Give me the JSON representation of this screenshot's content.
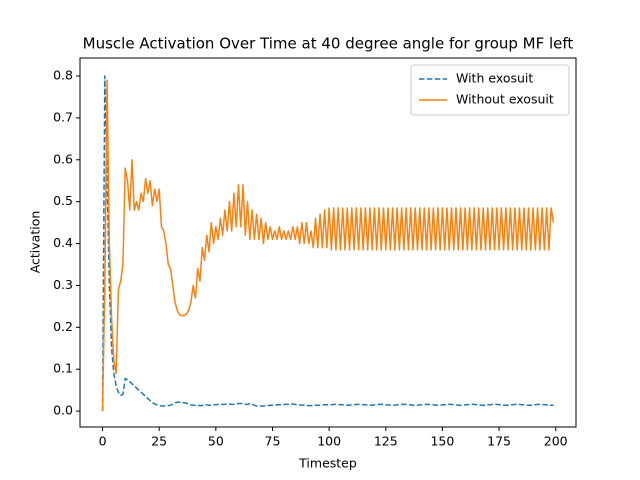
{
  "chart_data": {
    "type": "line",
    "title": "Muscle Activation Over Time at 40 degree angle for group MF left",
    "xlabel": "Timestep",
    "ylabel": "Activation",
    "xlim": [
      -9.95,
      208.95
    ],
    "ylim": [
      -0.038,
      0.843
    ],
    "xticks": [
      0,
      25,
      50,
      75,
      100,
      125,
      150,
      175,
      200
    ],
    "yticks": [
      {
        "value": 0,
        "label": "0.0"
      },
      0.1,
      0.2,
      0.3,
      0.4,
      0.5,
      0.6,
      0.7,
      0.8
    ],
    "legend": "upper right",
    "x": [
      0,
      1,
      2,
      3,
      4,
      5,
      6,
      7,
      8,
      9,
      10,
      11,
      12,
      13,
      14,
      15,
      16,
      17,
      18,
      19,
      20,
      21,
      22,
      23,
      24,
      25,
      26,
      27,
      28,
      29,
      30,
      31,
      32,
      33,
      34,
      35,
      36,
      37,
      38,
      39,
      40,
      41,
      42,
      43,
      44,
      45,
      46,
      47,
      48,
      49,
      50,
      51,
      52,
      53,
      54,
      55,
      56,
      57,
      58,
      59,
      60,
      61,
      62,
      63,
      64,
      65,
      66,
      67,
      68,
      69,
      70,
      71,
      72,
      73,
      74,
      75,
      76,
      77,
      78,
      79,
      80,
      81,
      82,
      83,
      84,
      85,
      86,
      87,
      88,
      89,
      90,
      91,
      92,
      93,
      94,
      95,
      96,
      97,
      98,
      99,
      100,
      101,
      102,
      103,
      104,
      105,
      106,
      107,
      108,
      109,
      110,
      111,
      112,
      113,
      114,
      115,
      116,
      117,
      118,
      119,
      120,
      121,
      122,
      123,
      124,
      125,
      126,
      127,
      128,
      129,
      130,
      131,
      132,
      133,
      134,
      135,
      136,
      137,
      138,
      139,
      140,
      141,
      142,
      143,
      144,
      145,
      146,
      147,
      148,
      149,
      150,
      151,
      152,
      153,
      154,
      155,
      156,
      157,
      158,
      159,
      160,
      161,
      162,
      163,
      164,
      165,
      166,
      167,
      168,
      169,
      170,
      171,
      172,
      173,
      174,
      175,
      176,
      177,
      178,
      179,
      180,
      181,
      182,
      183,
      184,
      185,
      186,
      187,
      188,
      189,
      190,
      191,
      192,
      193,
      194,
      195,
      196,
      197,
      198,
      199
    ],
    "series": [
      {
        "name": "With exosuit",
        "color": "#1f77b4",
        "linestyle": "dashed",
        "values": [
          0.0,
          0.8,
          0.55,
          0.3,
          0.15,
          0.09,
          0.06,
          0.045,
          0.038,
          0.04,
          0.078,
          0.075,
          0.07,
          0.065,
          0.06,
          0.055,
          0.05,
          0.045,
          0.04,
          0.035,
          0.03,
          0.025,
          0.02,
          0.017,
          0.015,
          0.013,
          0.012,
          0.012,
          0.012,
          0.013,
          0.014,
          0.016,
          0.02,
          0.021,
          0.021,
          0.02,
          0.02,
          0.019,
          0.017,
          0.015,
          0.014,
          0.014,
          0.014,
          0.013,
          0.013,
          0.016,
          0.015,
          0.014,
          0.014,
          0.015,
          0.015,
          0.016,
          0.015,
          0.016,
          0.016,
          0.017,
          0.017,
          0.016,
          0.016,
          0.017,
          0.018,
          0.018,
          0.017,
          0.016,
          0.016,
          0.018,
          0.016,
          0.014,
          0.012,
          0.012,
          0.012,
          0.012,
          0.013,
          0.013,
          0.014,
          0.014,
          0.014,
          0.015,
          0.015,
          0.015,
          0.016,
          0.016,
          0.016,
          0.017,
          0.017,
          0.016,
          0.015,
          0.015,
          0.014,
          0.014,
          0.013,
          0.013,
          0.013,
          0.013,
          0.014,
          0.014,
          0.014,
          0.015,
          0.015,
          0.015,
          0.015,
          0.015,
          0.016,
          0.016,
          0.016,
          0.015,
          0.015,
          0.014,
          0.014,
          0.014,
          0.015,
          0.015,
          0.016,
          0.016,
          0.016,
          0.015,
          0.015,
          0.014,
          0.014,
          0.014,
          0.015,
          0.015,
          0.016,
          0.016,
          0.016,
          0.015,
          0.015,
          0.014,
          0.014,
          0.014,
          0.015,
          0.015,
          0.016,
          0.016,
          0.016,
          0.015,
          0.015,
          0.014,
          0.014,
          0.014,
          0.015,
          0.015,
          0.016,
          0.016,
          0.016,
          0.015,
          0.015,
          0.014,
          0.014,
          0.014,
          0.015,
          0.015,
          0.016,
          0.016,
          0.016,
          0.015,
          0.015,
          0.014,
          0.014,
          0.014,
          0.015,
          0.015,
          0.016,
          0.016,
          0.016,
          0.015,
          0.015,
          0.014,
          0.014,
          0.014,
          0.015,
          0.015,
          0.016,
          0.016,
          0.016,
          0.015,
          0.015,
          0.014,
          0.014,
          0.014,
          0.015,
          0.015,
          0.016,
          0.016,
          0.016,
          0.015,
          0.015,
          0.014,
          0.014,
          0.014,
          0.015,
          0.015,
          0.016,
          0.016,
          0.016,
          0.015,
          0.015,
          0.014,
          0.014,
          0.014
        ]
      },
      {
        "name": "Without exosuit",
        "color": "#ff7f0e",
        "linestyle": "solid",
        "values": [
          0.0,
          0.3,
          0.79,
          0.4,
          0.22,
          0.12,
          0.09,
          0.29,
          0.31,
          0.35,
          0.58,
          0.55,
          0.48,
          0.6,
          0.48,
          0.5,
          0.48,
          0.52,
          0.5,
          0.555,
          0.52,
          0.55,
          0.49,
          0.53,
          0.5,
          0.53,
          0.44,
          0.43,
          0.4,
          0.35,
          0.34,
          0.3,
          0.26,
          0.24,
          0.23,
          0.228,
          0.228,
          0.232,
          0.24,
          0.26,
          0.3,
          0.27,
          0.34,
          0.31,
          0.39,
          0.36,
          0.42,
          0.38,
          0.45,
          0.4,
          0.44,
          0.41,
          0.46,
          0.42,
          0.48,
          0.43,
          0.5,
          0.43,
          0.52,
          0.44,
          0.54,
          0.44,
          0.54,
          0.42,
          0.5,
          0.41,
          0.48,
          0.41,
          0.47,
          0.41,
          0.46,
          0.4,
          0.45,
          0.41,
          0.44,
          0.41,
          0.43,
          0.41,
          0.44,
          0.41,
          0.43,
          0.41,
          0.43,
          0.41,
          0.44,
          0.41,
          0.44,
          0.4,
          0.45,
          0.4,
          0.45,
          0.4,
          0.43,
          0.39,
          0.46,
          0.39,
          0.47,
          0.39,
          0.48,
          0.39,
          0.485,
          0.385,
          0.485,
          0.385,
          0.485,
          0.385,
          0.485,
          0.385,
          0.485,
          0.385,
          0.485,
          0.385,
          0.485,
          0.385,
          0.485,
          0.385,
          0.485,
          0.385,
          0.485,
          0.385,
          0.485,
          0.385,
          0.485,
          0.385,
          0.485,
          0.385,
          0.485,
          0.385,
          0.485,
          0.385,
          0.485,
          0.385,
          0.485,
          0.385,
          0.485,
          0.385,
          0.485,
          0.385,
          0.485,
          0.385,
          0.485,
          0.385,
          0.485,
          0.385,
          0.485,
          0.385,
          0.485,
          0.385,
          0.485,
          0.385,
          0.485,
          0.385,
          0.485,
          0.385,
          0.485,
          0.385,
          0.485,
          0.385,
          0.485,
          0.385,
          0.485,
          0.385,
          0.485,
          0.385,
          0.485,
          0.385,
          0.485,
          0.385,
          0.485,
          0.385,
          0.485,
          0.385,
          0.485,
          0.385,
          0.485,
          0.385,
          0.485,
          0.385,
          0.485,
          0.385,
          0.485,
          0.385,
          0.485,
          0.385,
          0.485,
          0.385,
          0.485,
          0.385,
          0.485,
          0.385,
          0.485,
          0.385,
          0.485,
          0.385,
          0.485,
          0.385,
          0.485,
          0.385,
          0.485,
          0.45
        ]
      }
    ]
  }
}
